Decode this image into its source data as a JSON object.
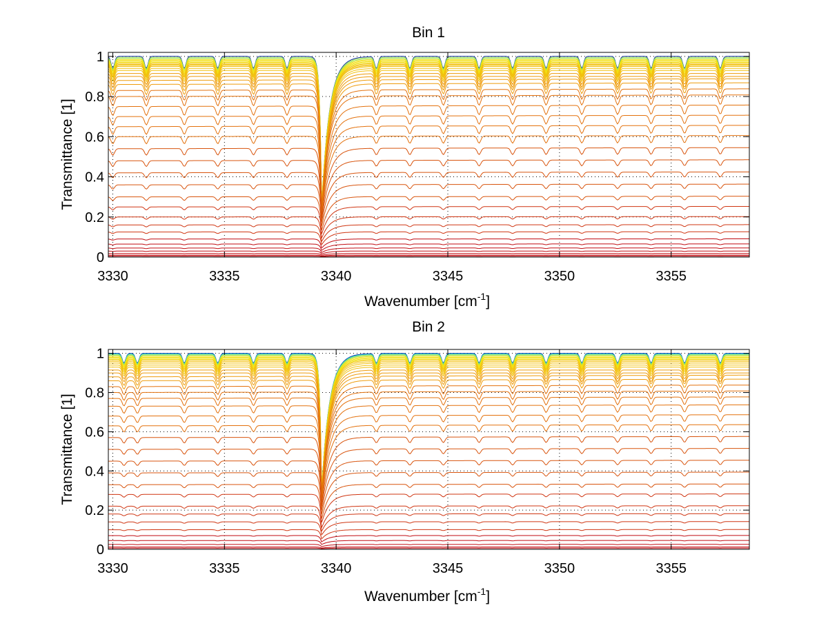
{
  "chart_data": [
    {
      "type": "line",
      "title": "Bin 1",
      "xlabel": "Wavenumber [cm",
      "xlabel_superscript": "-1",
      "xlabel_suffix": "]",
      "ylabel": "Transmittance [1]",
      "xlim": [
        3329.8,
        3358.5
      ],
      "ylim": [
        0,
        1.02
      ],
      "grid": true,
      "x_ticks": [
        3330,
        3335,
        3340,
        3345,
        3350,
        3355
      ],
      "x_tick_labels": [
        "3330",
        "3335",
        "3340",
        "3345",
        "3350",
        "3355"
      ],
      "y_ticks": [
        0,
        0.2,
        0.4,
        0.6,
        0.8,
        1
      ],
      "y_tick_labels": [
        "0",
        "0.2",
        "0.4",
        "0.6",
        "0.8",
        "1"
      ],
      "series_baselines": [
        1.0,
        0.995,
        0.99,
        0.985,
        0.98,
        0.975,
        0.97,
        0.965,
        0.96,
        0.955,
        0.95,
        0.94,
        0.93,
        0.915,
        0.9,
        0.88,
        0.86,
        0.83,
        0.8,
        0.75,
        0.7,
        0.65,
        0.6,
        0.54,
        0.48,
        0.42,
        0.36,
        0.3,
        0.25,
        0.2,
        0.16,
        0.125,
        0.09,
        0.065,
        0.045,
        0.03,
        0.018,
        0.01,
        0.005
      ],
      "main_line": {
        "center": 3339.35,
        "relative_depth": 0.75
      },
      "line_positions": [
        3330.0,
        3331.5,
        3333.2,
        3334.7,
        3336.3,
        3337.8,
        3341.8,
        3343.3,
        3344.8,
        3346.4,
        3347.9,
        3349.4,
        3351.0,
        3352.6,
        3354.1,
        3355.6,
        3357.2
      ],
      "line_relative_depth": 0.06
    },
    {
      "type": "line",
      "title": "Bin 2",
      "xlabel": "Wavenumber [cm",
      "xlabel_superscript": "-1",
      "xlabel_suffix": "]",
      "ylabel": "Transmittance [1]",
      "xlim": [
        3329.8,
        3358.5
      ],
      "ylim": [
        0,
        1.02
      ],
      "grid": true,
      "x_ticks": [
        3330,
        3335,
        3340,
        3345,
        3350,
        3355
      ],
      "x_tick_labels": [
        "3330",
        "3335",
        "3340",
        "3345",
        "3350",
        "3355"
      ],
      "y_ticks": [
        0,
        0.2,
        0.4,
        0.6,
        0.8,
        1
      ],
      "y_tick_labels": [
        "0",
        "0.2",
        "0.4",
        "0.6",
        "0.8",
        "1"
      ],
      "series_baselines": [
        1.0,
        0.997,
        0.993,
        0.99,
        0.985,
        0.98,
        0.975,
        0.97,
        0.965,
        0.958,
        0.95,
        0.94,
        0.93,
        0.915,
        0.9,
        0.88,
        0.86,
        0.83,
        0.8,
        0.77,
        0.73,
        0.68,
        0.63,
        0.57,
        0.51,
        0.45,
        0.39,
        0.33,
        0.28,
        0.22,
        0.18,
        0.14,
        0.1,
        0.07,
        0.045,
        0.025,
        0.012,
        0.006
      ],
      "main_line": {
        "center": 3339.35,
        "relative_depth": 0.7
      },
      "line_positions": [
        3330.5,
        3331.1,
        3333.2,
        3334.7,
        3336.3,
        3337.8,
        3341.8,
        3343.3,
        3344.8,
        3346.4,
        3347.9,
        3349.4,
        3351.0,
        3352.6,
        3354.1,
        3355.6,
        3357.2
      ],
      "line_relative_depth": 0.05
    }
  ]
}
